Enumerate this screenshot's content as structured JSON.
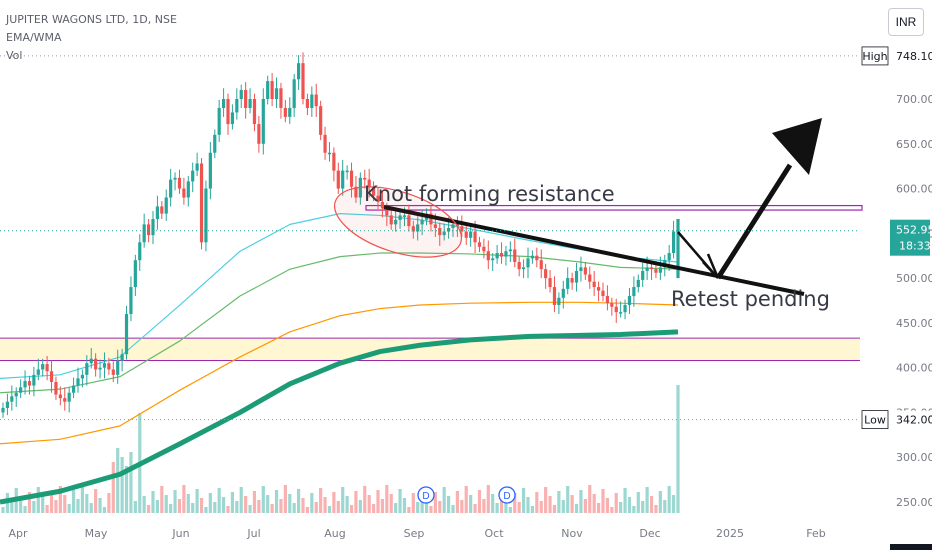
{
  "header": {
    "symbol": "JUPITER WAGONS LTD, 1D, NSE",
    "indicator": "EMA/WMA",
    "volume": "Vol"
  },
  "currency_button": "INR",
  "price_tags": {
    "high_label": "High",
    "high_value": "748.10",
    "low_label": "Low",
    "low_value": "342.00",
    "last_price": "552.95",
    "countdown": "18:33"
  },
  "annotations": {
    "resistance": "Knot forming resistance",
    "retest": "Retest pending"
  },
  "colors": {
    "up": "#26a69a",
    "down": "#ef5350",
    "ema_cyan": "#4dd0e1",
    "ema_green": "#66bb6a",
    "ema_orange": "#ff9800",
    "ema_teal": "#1b9c77",
    "zone": "#fff7d1",
    "zone_line": "#9c27b0",
    "last": "#26a69a"
  },
  "chart_data": {
    "type": "candlestick",
    "symbol": "JUPITER WAGONS LTD",
    "timeframe": "1D",
    "y_ticks": [
      250,
      300,
      350,
      400,
      450,
      500,
      550,
      600,
      650,
      700
    ],
    "y_tick_labels": [
      "250.00",
      "300.00",
      "350.00",
      "400.00",
      "450.00",
      "500.00",
      "550.00",
      "600.00",
      "650.00",
      "700.00"
    ],
    "x_ticks": [
      "Apr",
      "May",
      "Jun",
      "Jul",
      "Aug",
      "Sep",
      "Oct",
      "Nov",
      "Dec",
      "2025",
      "Feb"
    ],
    "high": 748.1,
    "low": 342.0,
    "last": 552.95,
    "support_zone": [
      408,
      433
    ],
    "resistance_box": [
      576,
      581
    ],
    "trendline": [
      [
        575,
        "Aug"
      ],
      [
        484,
        "Dec"
      ]
    ],
    "dividend_markers": [
      "Sep",
      "Oct"
    ],
    "candles_close": [
      355,
      362,
      368,
      372,
      378,
      385,
      380,
      392,
      398,
      404,
      396,
      384,
      370,
      366,
      362,
      372,
      380,
      388,
      392,
      405,
      410,
      398,
      400,
      405,
      398,
      392,
      408,
      415,
      460,
      490,
      520,
      540,
      560,
      548,
      566,
      580,
      572,
      590,
      610,
      612,
      600,
      590,
      608,
      620,
      628,
      540,
      600,
      640,
      660,
      690,
      700,
      672,
      685,
      700,
      710,
      690,
      700,
      672,
      650,
      700,
      720,
      700,
      712,
      690,
      680,
      690,
      722,
      740,
      700,
      690,
      705,
      692,
      660,
      640,
      640,
      620,
      600,
      620,
      620,
      602,
      590,
      612,
      610,
      602,
      592,
      585,
      578,
      570,
      560,
      565,
      570,
      570,
      558,
      552,
      560,
      565,
      572,
      560,
      556,
      548,
      552,
      556,
      560,
      558,
      552,
      545,
      552,
      540,
      535,
      530,
      520,
      522,
      528,
      524,
      530,
      532,
      518,
      510,
      512,
      522,
      525,
      520,
      510,
      500,
      490,
      470,
      478,
      488,
      500,
      495,
      508,
      512,
      504,
      496,
      490,
      486,
      480,
      472,
      468,
      462,
      462,
      470,
      480,
      490,
      498,
      508,
      512,
      510,
      506,
      512,
      520,
      528,
      552,
      553
    ],
    "volume_scale_note": "spike at last candle"
  }
}
